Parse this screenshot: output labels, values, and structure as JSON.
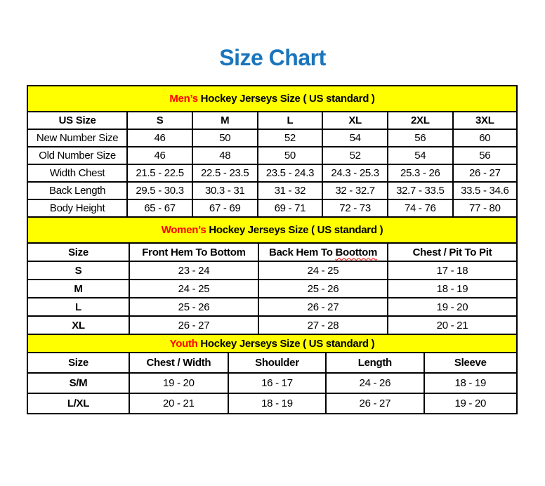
{
  "page_title": "Size Chart",
  "colors": {
    "title": "#1B75BC",
    "band_background": "#FFFF00",
    "accent": "#FF0000",
    "border": "#000000"
  },
  "tables": [
    {
      "id": "mens",
      "band": {
        "accent": "Men’s",
        "rest": " Hockey Jerseys Size ( US standard )"
      },
      "columns": [
        "US Size",
        "S",
        "M",
        "L",
        "XL",
        "2XL",
        "3XL"
      ],
      "rows": [
        {
          "label": "New Number Size",
          "values": [
            "46",
            "50",
            "52",
            "54",
            "56",
            "60"
          ]
        },
        {
          "label": "Old Number Size",
          "values": [
            "46",
            "48",
            "50",
            "52",
            "54",
            "56"
          ]
        },
        {
          "label": "Width Chest",
          "values": [
            "21.5 - 22.5",
            "22.5 - 23.5",
            "23.5 - 24.3",
            "24.3 - 25.3",
            "25.3 - 26",
            "26 - 27"
          ]
        },
        {
          "label": "Back Length",
          "values": [
            "29.5 - 30.3",
            "30.3 - 31",
            "31 - 32",
            "32 - 32.7",
            "32.7 - 33.5",
            "33.5 - 34.6"
          ]
        },
        {
          "label": "Body Height",
          "values": [
            "65 - 67",
            "67 - 69",
            "69 - 71",
            "72 - 73",
            "74 - 76",
            "77 - 80"
          ]
        }
      ]
    },
    {
      "id": "womens",
      "band": {
        "accent": "Women’s",
        "rest": " Hockey Jerseys Size ( US standard )"
      },
      "columns": [
        "Size",
        "Front Hem To Bottom",
        "Back Hem To Boottom",
        "Chest / Pit To Pit"
      ],
      "spellcheck": {
        "column_index": 2,
        "word": "Boottom"
      },
      "rows": [
        {
          "label": "S",
          "values": [
            "23 - 24",
            "24 - 25",
            "17 - 18"
          ]
        },
        {
          "label": "M",
          "values": [
            "24 - 25",
            "25 - 26",
            "18 - 19"
          ]
        },
        {
          "label": "L",
          "values": [
            "25 - 26",
            "26 - 27",
            "19 - 20"
          ]
        },
        {
          "label": "XL",
          "values": [
            "26 - 27",
            "27 - 28",
            "20 - 21"
          ]
        }
      ]
    },
    {
      "id": "youth",
      "band": {
        "accent": "Youth",
        "rest": " Hockey Jerseys Size ( US standard )"
      },
      "columns": [
        "Size",
        "Chest / Width",
        "Shoulder",
        "Length",
        "Sleeve"
      ],
      "rows": [
        {
          "label": "S/M",
          "values": [
            "19 - 20",
            "16 - 17",
            "24 - 26",
            "18 - 19"
          ]
        },
        {
          "label": "L/XL",
          "values": [
            "20 - 21",
            "18 - 19",
            "26 - 27",
            "19 - 20"
          ]
        }
      ]
    }
  ]
}
